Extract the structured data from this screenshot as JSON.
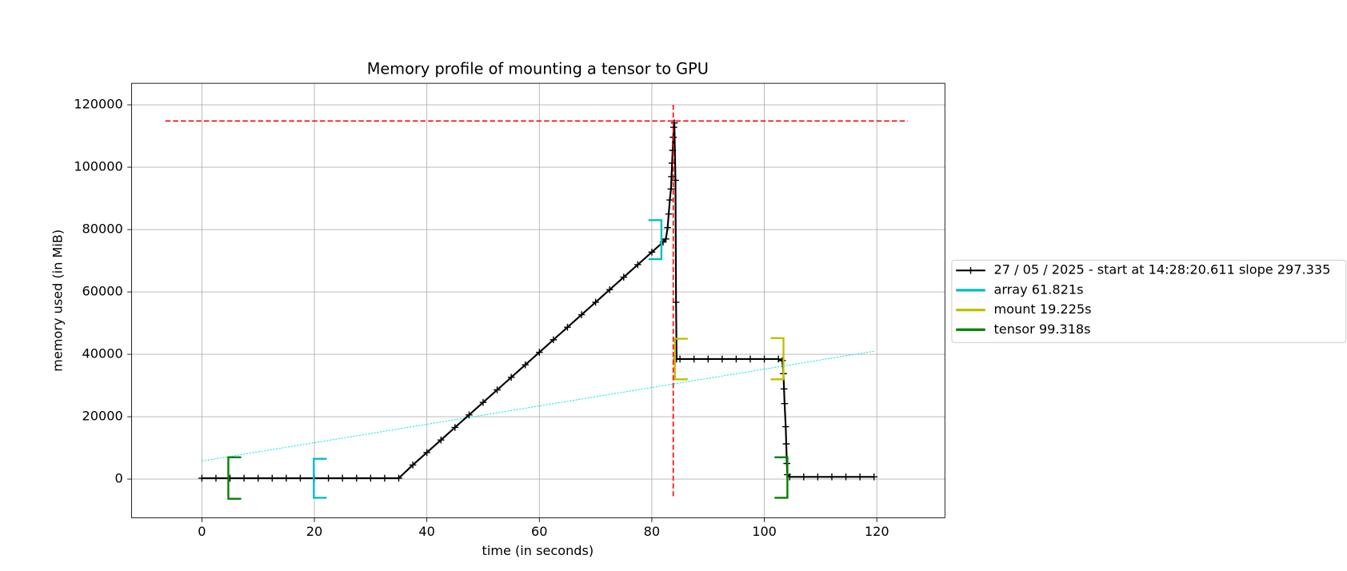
{
  "chart_data": {
    "type": "line",
    "title": "Memory profile of mounting a tensor to GPU",
    "x_label": "time (in seconds)",
    "y_label": "memory used (in MiB)",
    "xlim": [
      -12.5,
      132.1
    ],
    "ylim": [
      -12400,
      126900
    ],
    "xticks": [
      0,
      20,
      40,
      60,
      80,
      100,
      120
    ],
    "yticks": [
      0,
      20000,
      40000,
      60000,
      80000,
      100000,
      120000
    ],
    "grid": true,
    "legend": "right",
    "series": [
      {
        "name": "27 / 05 / 2025 - start at 14:28:20.611 slope 297.335",
        "color": "#000000",
        "x": [
          0,
          2.5,
          5,
          7.5,
          10,
          12.5,
          15,
          17.5,
          20,
          22.5,
          25,
          27.5,
          30,
          32.5,
          35,
          37.5,
          40,
          42.5,
          45,
          47.5,
          50,
          52.5,
          55,
          57.5,
          60,
          62.5,
          65,
          67.5,
          70,
          72.5,
          75,
          77.5,
          80,
          82,
          82.5,
          82.8,
          83,
          83.2,
          83.4,
          83.5,
          83.6,
          83.7,
          83.8,
          83.9,
          84,
          84.2,
          84.3,
          84.4,
          85,
          87.5,
          90,
          92.5,
          95,
          97.5,
          100,
          102.5,
          103.2,
          103.4,
          103.5,
          103.6,
          103.8,
          103.9,
          104,
          104.1,
          104.5,
          107,
          109.5,
          112,
          114.5,
          117,
          119.5
        ],
        "values": [
          300,
          300,
          300,
          300,
          300,
          300,
          300,
          300,
          300,
          300,
          300,
          300,
          300,
          300,
          300,
          4515,
          8530,
          12545,
          16560,
          20575,
          24590,
          28605,
          32620,
          36635,
          40650,
          44665,
          48680,
          52695,
          56710,
          60725,
          64740,
          68755,
          72770,
          76000,
          77000,
          80600,
          85000,
          89500,
          93000,
          97000,
          101300,
          105400,
          109600,
          112800,
          114200,
          95800,
          56700,
          38500,
          38500,
          38500,
          38500,
          38500,
          38500,
          38500,
          38500,
          38500,
          38000,
          33800,
          28900,
          24200,
          16800,
          11300,
          5000,
          1400,
          700,
          700,
          700,
          700,
          700,
          700,
          700
        ]
      },
      {
        "name": "array 61.821s",
        "color": "#00bfbf",
        "x": [
          19.9,
          81.7
        ],
        "ymin": [
          -6000,
          70500
        ],
        "ymax": [
          6500,
          83000
        ]
      },
      {
        "name": "mount 19.225s",
        "color": "#bfbf00",
        "x": [
          84.1,
          103.4
        ],
        "ymin": [
          32000,
          32000
        ],
        "ymax": [
          45000,
          45200
        ]
      },
      {
        "name": "tensor 99.318s",
        "color": "#008000",
        "x": [
          4.7,
          104.1
        ],
        "ymin": [
          -6300,
          -6000
        ],
        "ymax": [
          7000,
          7000
        ]
      }
    ],
    "trend": {
      "color": "#00e5e5",
      "x": [
        0,
        119.5
      ],
      "values": [
        5780,
        41000
      ]
    },
    "hlines": [
      {
        "color": "#ff0000",
        "y": 114800,
        "x": [
          -6.5,
          125.5
        ]
      }
    ],
    "vlines": [
      {
        "color": "#ff0000",
        "x": 83.8,
        "y": [
          -5500,
          120000
        ]
      }
    ]
  }
}
